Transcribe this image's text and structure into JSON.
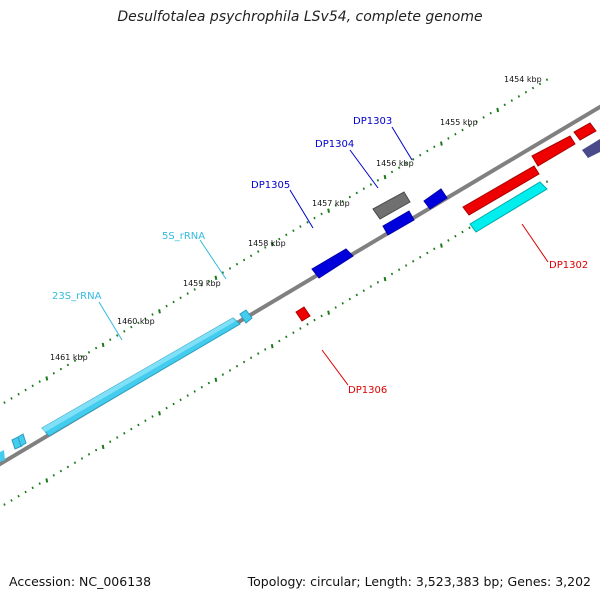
{
  "title": "Desulfotalea psychrophila LSv54, complete genome",
  "footer": {
    "accession": "Accession: NC_006138",
    "stats": "Topology: circular; Length: 3,523,383 bp; Genes: 3,202"
  },
  "colors": {
    "backbone": "#808080",
    "tick_marks": "#1a7a1a",
    "cds_forward": "#0000dd",
    "cds_reverse": "#ee0000",
    "rrna": "#44ccee",
    "pseudo": "#707070",
    "other_reverse": "#00eeee",
    "dark_feature": "#4a4a8a"
  },
  "ticks": [
    {
      "label": "1454 kbp"
    },
    {
      "label": "1455 kbp"
    },
    {
      "label": "1456 kbp"
    },
    {
      "label": "1457 kbp"
    },
    {
      "label": "1458 kbp"
    },
    {
      "label": "1459 kbp"
    },
    {
      "label": "1460 kbp"
    },
    {
      "label": "1461 kbp"
    }
  ],
  "gene_labels": [
    {
      "name": "DP1303",
      "color": "#0000cc"
    },
    {
      "name": "DP1304",
      "color": "#0000cc"
    },
    {
      "name": "DP1305",
      "color": "#0000cc"
    },
    {
      "name": "5S_rRNA",
      "color": "#33bbdd"
    },
    {
      "name": "23S_rRNA",
      "color": "#33bbdd"
    },
    {
      "name": "DP1302",
      "color": "#dd0000"
    },
    {
      "name": "DP1306",
      "color": "#dd0000"
    }
  ]
}
